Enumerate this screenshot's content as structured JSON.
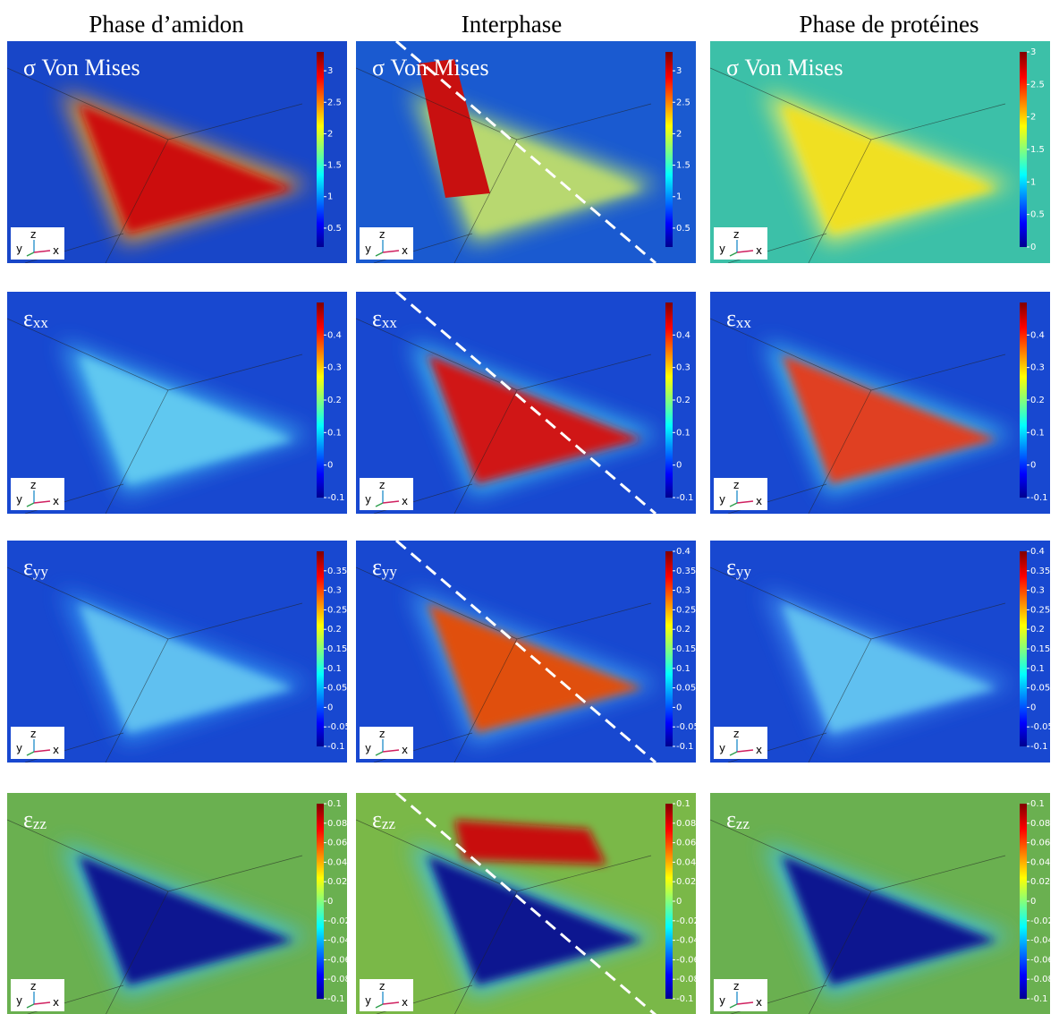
{
  "columns": [
    "Phase d’amidon",
    "Interphase",
    "Phase de protéines"
  ],
  "axes": [
    "y",
    "z",
    "x"
  ],
  "rows": [
    {
      "symbol": "σ Von Mises",
      "subscript": null,
      "colorbars": [
        {
          "lim": [
            0.2,
            3.3
          ],
          "ticks": [
            0.5,
            1,
            1.5,
            2,
            2.5,
            3
          ]
        },
        {
          "lim": [
            0.2,
            3.3
          ],
          "ticks": [
            0.5,
            1,
            1.5,
            2,
            2.5,
            3
          ]
        },
        {
          "lim": [
            0,
            3
          ],
          "ticks": [
            0,
            0.5,
            1,
            1.5,
            2,
            2.5,
            3
          ]
        }
      ]
    },
    {
      "symbol": "ε",
      "subscript": "xx",
      "colorbars": [
        {
          "lim": [
            -0.1,
            0.5
          ],
          "ticks": [
            -0.1,
            0,
            0.1,
            0.2,
            0.3,
            0.4
          ]
        },
        {
          "lim": [
            -0.1,
            0.5
          ],
          "ticks": [
            -0.1,
            0,
            0.1,
            0.2,
            0.3,
            0.4
          ]
        },
        {
          "lim": [
            -0.1,
            0.5
          ],
          "ticks": [
            -0.1,
            0,
            0.1,
            0.2,
            0.3,
            0.4
          ]
        }
      ]
    },
    {
      "symbol": "ε",
      "subscript": "yy",
      "colorbars": [
        {
          "lim": [
            -0.1,
            0.4
          ],
          "ticks": [
            -0.1,
            -0.05,
            0,
            0.05,
            0.1,
            0.15,
            0.2,
            0.25,
            0.3,
            0.35
          ]
        },
        {
          "lim": [
            -0.1,
            0.4
          ],
          "ticks": [
            -0.1,
            -0.05,
            0,
            0.05,
            0.1,
            0.15,
            0.2,
            0.25,
            0.3,
            0.35,
            0.4
          ]
        },
        {
          "lim": [
            -0.1,
            0.4
          ],
          "ticks": [
            -0.1,
            -0.05,
            0,
            0.05,
            0.1,
            0.15,
            0.2,
            0.25,
            0.3,
            0.35,
            0.4
          ]
        }
      ]
    },
    {
      "symbol": "ε",
      "subscript": "zz",
      "colorbars": [
        {
          "lim": [
            -0.1,
            0.1
          ],
          "ticks": [
            -0.1,
            -0.08,
            -0.06,
            -0.04,
            -0.02,
            0,
            0.02,
            0.04,
            0.06,
            0.08,
            0.1
          ]
        },
        {
          "lim": [
            -0.1,
            0.1
          ],
          "ticks": [
            -0.1,
            -0.08,
            -0.06,
            -0.04,
            -0.02,
            0,
            0.02,
            0.04,
            0.06,
            0.08,
            0.1
          ]
        },
        {
          "lim": [
            -0.1,
            0.1
          ],
          "ticks": [
            -0.1,
            -0.08,
            -0.06,
            -0.04,
            -0.02,
            0,
            0.02,
            0.04,
            0.06,
            0.08,
            0.1
          ]
        }
      ]
    }
  ]
}
